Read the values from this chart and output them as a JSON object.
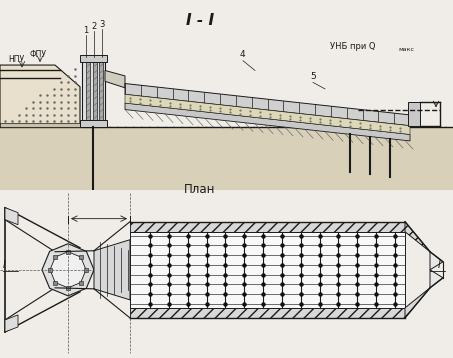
{
  "bg_color": "#f0ede8",
  "line_color": "#1a1a1a",
  "title_section1": "I - I",
  "title_section2": "План",
  "label_npu": "НПУ",
  "label_fpu": "ФПУ",
  "label_unb": "УНБ при Q",
  "label_qmax": "макс",
  "num1": "1",
  "num2": "2",
  "num3": "3",
  "num4": "4",
  "num5": "5"
}
